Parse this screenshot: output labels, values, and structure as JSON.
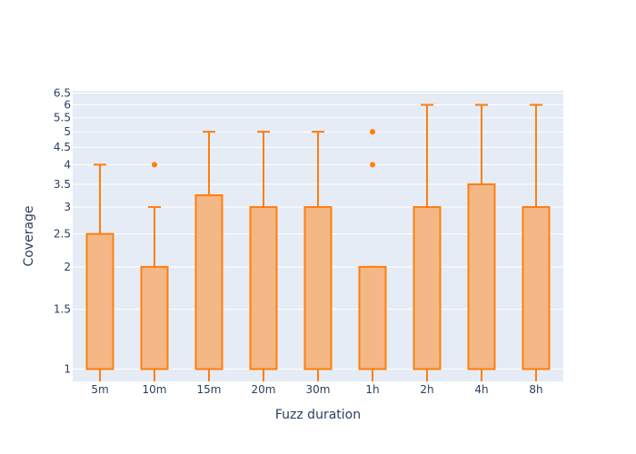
{
  "chart_data": {
    "type": "box",
    "title": "",
    "xlabel": "Fuzz duration",
    "ylabel": "Coverage",
    "y_scale": "log",
    "ylim": [
      0.92,
      6.6
    ],
    "y_ticks": [
      1,
      1.5,
      2,
      2.5,
      3,
      3.5,
      4,
      4.5,
      5,
      5.5,
      6,
      6.5
    ],
    "y_tick_labels": [
      "1",
      "1.5",
      "2",
      "2.5",
      "3",
      "3.5",
      "4",
      "4.5",
      "5",
      "5.5",
      "6",
      "6.5"
    ],
    "grid": true,
    "color": "#ff7f0e",
    "fill_color": "#f4b786",
    "plot_bg": "#e5ecf6",
    "categories": [
      "5m",
      "10m",
      "15m",
      "20m",
      "30m",
      "1h",
      "2h",
      "4h",
      "8h"
    ],
    "boxes": [
      {
        "min": 1,
        "q1": 1,
        "median": 1,
        "q3": 2.5,
        "max": 4,
        "outliers": []
      },
      {
        "min": 1,
        "q1": 1,
        "median": 1,
        "q3": 2,
        "max": 3,
        "outliers": [
          4
        ]
      },
      {
        "min": 1,
        "q1": 1,
        "median": 1,
        "q3": 3.25,
        "max": 5,
        "outliers": []
      },
      {
        "min": 1,
        "q1": 1,
        "median": 1,
        "q3": 3,
        "max": 5,
        "outliers": []
      },
      {
        "min": 1,
        "q1": 1,
        "median": 1,
        "q3": 3,
        "max": 5,
        "outliers": []
      },
      {
        "min": 1,
        "q1": 1,
        "median": 1,
        "q3": 2,
        "max": 2,
        "outliers": [
          4,
          5,
          5
        ]
      },
      {
        "min": 1,
        "q1": 1,
        "median": 1,
        "q3": 3,
        "max": 6,
        "outliers": []
      },
      {
        "min": 1,
        "q1": 1,
        "median": 1,
        "q3": 3.5,
        "max": 6,
        "outliers": []
      },
      {
        "min": 1,
        "q1": 1,
        "median": 1,
        "q3": 3,
        "max": 6,
        "outliers": []
      }
    ]
  }
}
